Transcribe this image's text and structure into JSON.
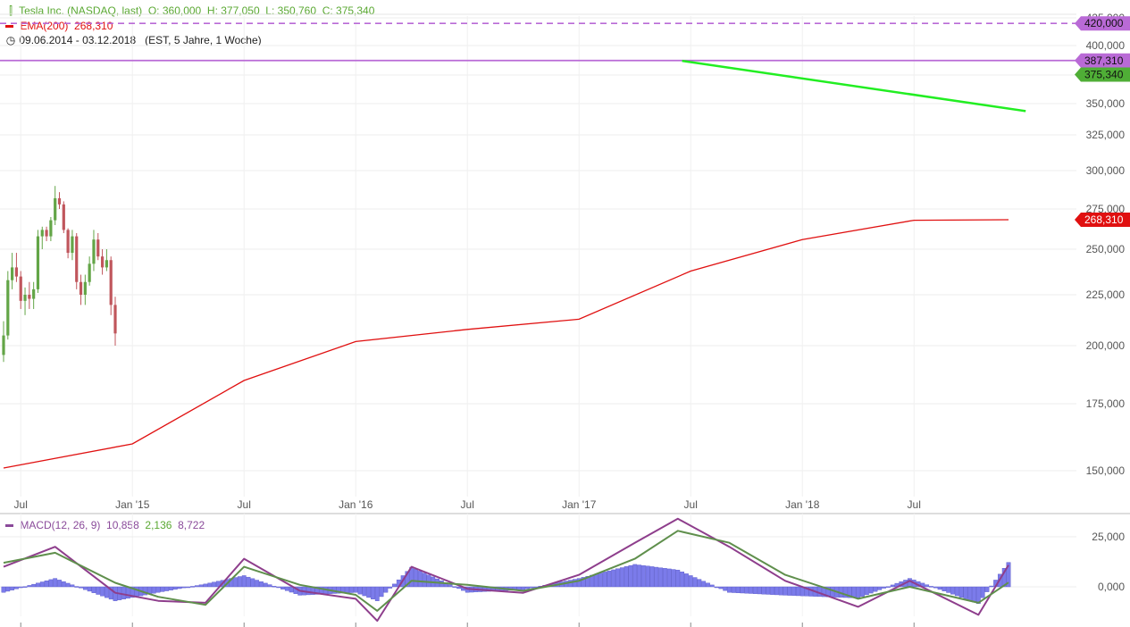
{
  "legend": {
    "instrument": "Tesla Inc. (NASDAQ, last)",
    "open": "O: 360,000",
    "high": "H: 377,050",
    "low": "L: 350,760",
    "close": "C: 375,340",
    "ema_label": "EMA(200)",
    "ema_value": "268,310",
    "range": "09.06.2014 - 03.12.2018",
    "range_note": "(EST, 5 Jahre, 1 Woche)",
    "macd_label": "MACD(12, 26, 9)",
    "macd_v1": "10,858",
    "macd_v2": "2,136",
    "macd_v3": "8,722"
  },
  "colors": {
    "up": "#63a547",
    "down": "#c0565c",
    "ema": "#e01010",
    "trend": "#22ee22",
    "resistance": "#b96ad6",
    "macd_hist": "#7b7bea",
    "macd_line": "#8e3e8c",
    "signal_line": "#5f8f4c",
    "last_price": "#4fae36"
  },
  "chart_data": [
    {
      "type": "candlestick",
      "title": "Tesla Inc. (NASDAQ, last)",
      "interval": "1 Woche",
      "ylim": [
        135000,
        425000
      ],
      "y_ticks": [
        150000,
        175000,
        200000,
        225000,
        250000,
        275000,
        300000,
        325000,
        350000,
        375000,
        400000,
        425000
      ],
      "y_tick_labels": [
        "150,000",
        "175,000",
        "200,000",
        "225,000",
        "250,000",
        "275,000",
        "300,000",
        "325,000",
        "350,000",
        "375,000",
        "400,000",
        "425,000"
      ],
      "x_range": [
        "2014-06-09",
        "2018-12-03"
      ],
      "x_ticks": [
        {
          "label": "Jul",
          "date": "2014-07-07"
        },
        {
          "label": "Jan '15",
          "date": "2015-01-05"
        },
        {
          "label": "Jul",
          "date": "2015-07-06"
        },
        {
          "label": "Jan '16",
          "date": "2016-01-04"
        },
        {
          "label": "Jul",
          "date": "2016-07-04"
        },
        {
          "label": "Jan '17",
          "date": "2017-01-02"
        },
        {
          "label": "Jul",
          "date": "2017-07-03"
        },
        {
          "label": "Jan '18",
          "date": "2018-01-01"
        },
        {
          "label": "Jul",
          "date": "2018-07-02"
        }
      ],
      "badges": [
        {
          "label": "420,000",
          "value": 420000,
          "style": "resistance"
        },
        {
          "label": "387,310",
          "value": 387310,
          "style": "resistance"
        },
        {
          "label": "375,340",
          "value": 375340,
          "style": "last_price"
        },
        {
          "label": "268,310",
          "value": 268310,
          "style": "ema"
        }
      ],
      "horizontal_lines": [
        {
          "value": 420000,
          "dashed": true,
          "style": "resistance"
        },
        {
          "value": 387310,
          "dashed": false,
          "style": "resistance"
        }
      ],
      "trendline": [
        {
          "date": "2017-06-19",
          "value": 387000
        },
        {
          "date": "2018-12-31",
          "value": 344000
        }
      ],
      "candles_note": "approximate weekly OHLC read from the chart",
      "candles": [
        {
          "date": "2014-06-09",
          "o": 196,
          "h": 212,
          "l": 193,
          "c": 205
        },
        {
          "date": "2014-06-16",
          "o": 205,
          "h": 238,
          "l": 203,
          "c": 233
        },
        {
          "date": "2014-06-23",
          "o": 233,
          "h": 248,
          "l": 228,
          "c": 240
        },
        {
          "date": "2014-06-30",
          "o": 240,
          "h": 248,
          "l": 232,
          "c": 235
        },
        {
          "date": "2014-07-07",
          "o": 235,
          "h": 238,
          "l": 218,
          "c": 222
        },
        {
          "date": "2014-07-14",
          "o": 222,
          "h": 229,
          "l": 215,
          "c": 225
        },
        {
          "date": "2014-07-21",
          "o": 225,
          "h": 232,
          "l": 218,
          "c": 223
        },
        {
          "date": "2014-07-28",
          "o": 223,
          "h": 232,
          "l": 218,
          "c": 228
        },
        {
          "date": "2014-08-04",
          "o": 228,
          "h": 262,
          "l": 226,
          "c": 258
        },
        {
          "date": "2014-08-11",
          "o": 258,
          "h": 264,
          "l": 250,
          "c": 262
        },
        {
          "date": "2014-08-18",
          "o": 262,
          "h": 264,
          "l": 255,
          "c": 258
        },
        {
          "date": "2014-08-25",
          "o": 258,
          "h": 270,
          "l": 255,
          "c": 268
        },
        {
          "date": "2014-09-01",
          "o": 268,
          "h": 290,
          "l": 265,
          "c": 282
        },
        {
          "date": "2014-09-08",
          "o": 282,
          "h": 286,
          "l": 275,
          "c": 278
        },
        {
          "date": "2014-09-15",
          "o": 278,
          "h": 280,
          "l": 260,
          "c": 262
        },
        {
          "date": "2014-09-22",
          "o": 262,
          "h": 263,
          "l": 245,
          "c": 248
        },
        {
          "date": "2014-09-29",
          "o": 248,
          "h": 262,
          "l": 244,
          "c": 258
        },
        {
          "date": "2014-10-06",
          "o": 258,
          "h": 260,
          "l": 228,
          "c": 232
        },
        {
          "date": "2014-10-13",
          "o": 232,
          "h": 236,
          "l": 220,
          "c": 225
        },
        {
          "date": "2014-10-20",
          "o": 225,
          "h": 236,
          "l": 220,
          "c": 232
        },
        {
          "date": "2014-10-27",
          "o": 232,
          "h": 246,
          "l": 230,
          "c": 242
        },
        {
          "date": "2014-11-03",
          "o": 242,
          "h": 262,
          "l": 238,
          "c": 256
        },
        {
          "date": "2014-11-10",
          "o": 256,
          "h": 260,
          "l": 244,
          "c": 246
        },
        {
          "date": "2014-11-17",
          "o": 246,
          "h": 250,
          "l": 236,
          "c": 240
        },
        {
          "date": "2014-11-24",
          "o": 240,
          "h": 250,
          "l": 238,
          "c": 244
        },
        {
          "date": "2014-12-01",
          "o": 244,
          "h": 246,
          "l": 215,
          "c": 220
        },
        {
          "date": "2014-12-08",
          "o": 220,
          "h": 224,
          "l": 200,
          "c": 206
        }
      ],
      "ema": [
        {
          "date": "2014-06-09",
          "value": 151000
        },
        {
          "date": "2015-01-05",
          "value": 160000
        },
        {
          "date": "2015-07-06",
          "value": 185000
        },
        {
          "date": "2016-01-04",
          "value": 202000
        },
        {
          "date": "2016-07-04",
          "value": 208000
        },
        {
          "date": "2017-01-02",
          "value": 213000
        },
        {
          "date": "2017-07-03",
          "value": 238000
        },
        {
          "date": "2018-01-01",
          "value": 256000
        },
        {
          "date": "2018-07-02",
          "value": 268000
        },
        {
          "date": "2018-12-03",
          "value": 268310
        }
      ]
    },
    {
      "type": "macd",
      "title": "MACD(12, 26, 9)",
      "ylim": [
        -35000,
        35000
      ],
      "y_ticks": [
        0,
        25000
      ],
      "y_tick_labels": [
        "0,000",
        "25,000"
      ],
      "x_range": [
        "2014-06-09",
        "2018-12-03"
      ],
      "series": [
        {
          "name": "MACD",
          "style": "macd_line",
          "values": [
            {
              "date": "2014-06-09",
              "value": 10000
            },
            {
              "date": "2014-09-01",
              "value": 20000
            },
            {
              "date": "2014-12-08",
              "value": -3000
            },
            {
              "date": "2015-02-16",
              "value": -7000
            },
            {
              "date": "2015-05-04",
              "value": -8000
            },
            {
              "date": "2015-07-06",
              "value": 14000
            },
            {
              "date": "2015-10-05",
              "value": -2000
            },
            {
              "date": "2016-01-04",
              "value": -6000
            },
            {
              "date": "2016-02-08",
              "value": -17000
            },
            {
              "date": "2016-04-04",
              "value": 10000
            },
            {
              "date": "2016-07-04",
              "value": -1000
            },
            {
              "date": "2016-10-03",
              "value": -3000
            },
            {
              "date": "2017-01-02",
              "value": 6000
            },
            {
              "date": "2017-04-03",
              "value": 22000
            },
            {
              "date": "2017-06-12",
              "value": 34000
            },
            {
              "date": "2017-09-04",
              "value": 20000
            },
            {
              "date": "2017-12-04",
              "value": 3000
            },
            {
              "date": "2018-04-02",
              "value": -10000
            },
            {
              "date": "2018-06-25",
              "value": 3000
            },
            {
              "date": "2018-10-15",
              "value": -14000
            },
            {
              "date": "2018-12-03",
              "value": 10858
            }
          ]
        },
        {
          "name": "Signal",
          "style": "signal_line",
          "values": [
            {
              "date": "2014-06-09",
              "value": 12000
            },
            {
              "date": "2014-09-01",
              "value": 17000
            },
            {
              "date": "2014-12-08",
              "value": 2000
            },
            {
              "date": "2015-02-16",
              "value": -5000
            },
            {
              "date": "2015-05-04",
              "value": -9000
            },
            {
              "date": "2015-07-06",
              "value": 10000
            },
            {
              "date": "2015-10-05",
              "value": 1000
            },
            {
              "date": "2016-01-04",
              "value": -4000
            },
            {
              "date": "2016-02-08",
              "value": -12000
            },
            {
              "date": "2016-04-04",
              "value": 3000
            },
            {
              "date": "2016-07-04",
              "value": 1000
            },
            {
              "date": "2016-10-03",
              "value": -2000
            },
            {
              "date": "2017-01-02",
              "value": 3000
            },
            {
              "date": "2017-04-03",
              "value": 14000
            },
            {
              "date": "2017-06-12",
              "value": 28000
            },
            {
              "date": "2017-09-04",
              "value": 22000
            },
            {
              "date": "2017-12-04",
              "value": 6000
            },
            {
              "date": "2018-04-02",
              "value": -6000
            },
            {
              "date": "2018-06-25",
              "value": 0
            },
            {
              "date": "2018-10-15",
              "value": -8000
            },
            {
              "date": "2018-12-03",
              "value": 2136
            }
          ]
        }
      ],
      "histogram_last": 8722
    }
  ]
}
